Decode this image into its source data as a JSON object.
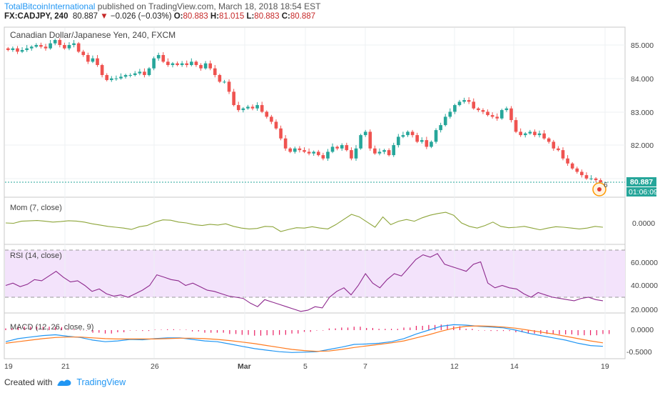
{
  "header": {
    "author": "TotalBitcoinInternational",
    "published_text": "published on TradingView.com, March 18, 2018 18:54 EST",
    "symbol": "FX:CADJPY, 240",
    "last": "80.887",
    "change": "−0.026 (−0.03%)",
    "o_label": "O:",
    "o": "80.883",
    "h_label": "H:",
    "h": "81.015",
    "l_label": "L:",
    "l": "80.883",
    "c_label": "C:",
    "c": "80.887"
  },
  "panels": {
    "price_title": "Canadian Dollar/Japanese Yen, 240, FXCM",
    "mom_title": "Mom (7, close)",
    "rsi_title": "RSI (14, close)",
    "macd_title": "MACD (12, 26, close, 9)"
  },
  "price_axis": {
    "ticks": [
      "85.000",
      "84.000",
      "83.000",
      "82.000"
    ],
    "last_label": "80.887",
    "countdown": "01:06:09",
    "marker_number": "6"
  },
  "mom_axis": {
    "ticks": [
      "0.0000"
    ]
  },
  "rsi_axis": {
    "ticks": [
      "60.0000",
      "40.0000",
      "20.0000"
    ]
  },
  "macd_axis": {
    "ticks": [
      "0.0000",
      "-0.5000"
    ]
  },
  "time_axis": {
    "labels": [
      "19",
      "21",
      "26",
      "Mar",
      "5",
      "7",
      "12",
      "14",
      "19"
    ]
  },
  "footer": {
    "created_with": "Created with",
    "brand": "TradingView"
  },
  "colors": {
    "up": "#26a69a",
    "down": "#ef5350",
    "mom": "#8da53a",
    "rsi": "#8e2a8e",
    "rsi_band": "#f3e3fb",
    "macd": "#2196f3",
    "signal": "#ff7b20",
    "hist": "#e91e63"
  },
  "chart_data": [
    {
      "type": "candlestick",
      "title": "Canadian Dollar/Japanese Yen, 240, FXCM",
      "ylim": [
        80.5,
        85.5
      ],
      "series": [
        {
          "name": "CADJPY",
          "close_path": [
            84.85,
            84.9,
            84.8,
            84.85,
            84.9,
            84.95,
            85.0,
            84.95,
            84.9,
            85.05,
            85.15,
            85.0,
            84.9,
            85.0,
            85.05,
            84.8,
            84.7,
            84.5,
            84.6,
            84.4,
            84.1,
            83.95,
            84.0,
            84.0,
            84.05,
            84.1,
            84.1,
            84.15,
            84.2,
            84.1,
            84.3,
            84.6,
            84.7,
            84.5,
            84.4,
            84.45,
            84.4,
            84.45,
            84.4,
            84.5,
            84.4,
            84.3,
            84.45,
            84.3,
            84.1,
            83.9,
            83.9,
            83.6,
            83.2,
            83.05,
            83.1,
            83.15,
            83.1,
            83.2,
            83.0,
            82.85,
            82.7,
            82.5,
            82.2,
            81.9,
            81.8,
            81.9,
            81.85,
            81.8,
            81.75,
            81.8,
            81.7,
            81.6,
            81.8,
            81.95,
            81.9,
            82.0,
            81.85,
            81.6,
            81.9,
            82.3,
            82.4,
            81.9,
            81.75,
            81.8,
            81.85,
            81.7,
            82.0,
            82.25,
            82.3,
            82.4,
            82.3,
            82.1,
            82.15,
            81.95,
            82.1,
            82.45,
            82.6,
            82.85,
            83.0,
            83.2,
            83.3,
            83.35,
            83.3,
            83.1,
            83.05,
            83.0,
            82.9,
            82.85,
            82.8,
            83.05,
            83.1,
            82.75,
            82.4,
            82.3,
            82.35,
            82.4,
            82.3,
            82.35,
            82.2,
            82.1,
            81.9,
            81.85,
            81.6,
            81.45,
            81.3,
            81.2,
            81.1,
            81.0,
            81.0,
            80.95,
            80.887
          ]
        }
      ]
    },
    {
      "type": "line",
      "title": "Mom (7, close)",
      "series": [
        {
          "name": "Mom (7, close)",
          "values": [
            0.0,
            -0.02,
            0.1,
            0.12,
            0.14,
            0.1,
            0.05,
            0.08,
            0.13,
            0.11,
            0.05,
            -0.05,
            -0.12,
            -0.2,
            -0.25,
            -0.3,
            -0.38,
            -0.22,
            -0.15,
            0.05,
            0.18,
            0.16,
            0.05,
            0.0,
            -0.1,
            -0.15,
            -0.08,
            -0.12,
            -0.05,
            -0.2,
            -0.3,
            -0.35,
            -0.32,
            -0.2,
            -0.22,
            -0.5,
            -0.38,
            -0.28,
            -0.3,
            -0.22,
            -0.3,
            -0.35,
            -0.1,
            0.2,
            0.5,
            0.35,
            0.05,
            -0.25,
            0.35,
            -0.1,
            0.1,
            0.2,
            0.1,
            0.3,
            0.45,
            0.55,
            0.62,
            0.45,
            0.0,
            -0.2,
            -0.3,
            -0.15,
            0.05,
            -0.2,
            -0.28,
            -0.25,
            -0.2,
            -0.3,
            -0.4,
            -0.3,
            -0.22,
            -0.25,
            -0.3,
            -0.35,
            -0.3,
            -0.2,
            -0.25
          ]
        }
      ]
    },
    {
      "type": "line",
      "title": "RSI (14, close)",
      "ylim": [
        15,
        72
      ],
      "series": [
        {
          "name": "RSI (14, close)",
          "values": [
            40,
            42,
            39,
            41,
            45,
            44,
            48,
            52,
            47,
            43,
            44,
            40,
            35,
            37,
            33,
            31,
            32,
            30,
            33,
            36,
            40,
            49,
            47,
            45,
            44,
            40,
            42,
            39,
            36,
            35,
            33,
            31,
            30,
            29,
            25,
            22,
            28,
            26,
            24,
            22,
            20,
            18,
            19,
            22,
            21,
            30,
            35,
            38,
            32,
            40,
            50,
            42,
            38,
            45,
            50,
            48,
            55,
            62,
            66,
            64,
            67,
            58,
            56,
            54,
            52,
            58,
            60,
            42,
            38,
            40,
            38,
            37,
            33,
            30,
            34,
            32,
            30,
            29,
            28,
            27,
            29,
            30,
            28,
            27
          ]
        }
      ]
    },
    {
      "type": "line",
      "title": "MACD (12, 26, close, 9)",
      "ylim": [
        -0.62,
        0.25
      ],
      "series": [
        {
          "name": "MACD",
          "values": [
            -0.3,
            -0.22,
            -0.18,
            -0.14,
            -0.12,
            -0.16,
            -0.19,
            -0.26,
            -0.3,
            -0.28,
            -0.24,
            -0.25,
            -0.22,
            -0.2,
            -0.2,
            -0.24,
            -0.28,
            -0.3,
            -0.36,
            -0.42,
            -0.48,
            -0.52,
            -0.56,
            -0.58,
            -0.57,
            -0.56,
            -0.5,
            -0.44,
            -0.37,
            -0.36,
            -0.34,
            -0.3,
            -0.22,
            -0.1,
            0.0,
            0.1,
            0.14,
            0.13,
            0.1,
            0.08,
            0.06,
            0.0,
            -0.08,
            -0.14,
            -0.2,
            -0.26,
            -0.34,
            -0.4,
            -0.42
          ]
        },
        {
          "name": "Signal",
          "values": [
            -0.34,
            -0.3,
            -0.26,
            -0.22,
            -0.19,
            -0.18,
            -0.18,
            -0.2,
            -0.22,
            -0.23,
            -0.23,
            -0.23,
            -0.23,
            -0.22,
            -0.21,
            -0.21,
            -0.22,
            -0.24,
            -0.27,
            -0.31,
            -0.35,
            -0.4,
            -0.45,
            -0.5,
            -0.53,
            -0.55,
            -0.54,
            -0.5,
            -0.45,
            -0.41,
            -0.37,
            -0.33,
            -0.28,
            -0.2,
            -0.12,
            -0.03,
            0.05,
            0.1,
            0.11,
            0.1,
            0.08,
            0.05,
            0.0,
            -0.05,
            -0.1,
            -0.16,
            -0.22,
            -0.28,
            -0.33
          ]
        }
      ]
    }
  ]
}
